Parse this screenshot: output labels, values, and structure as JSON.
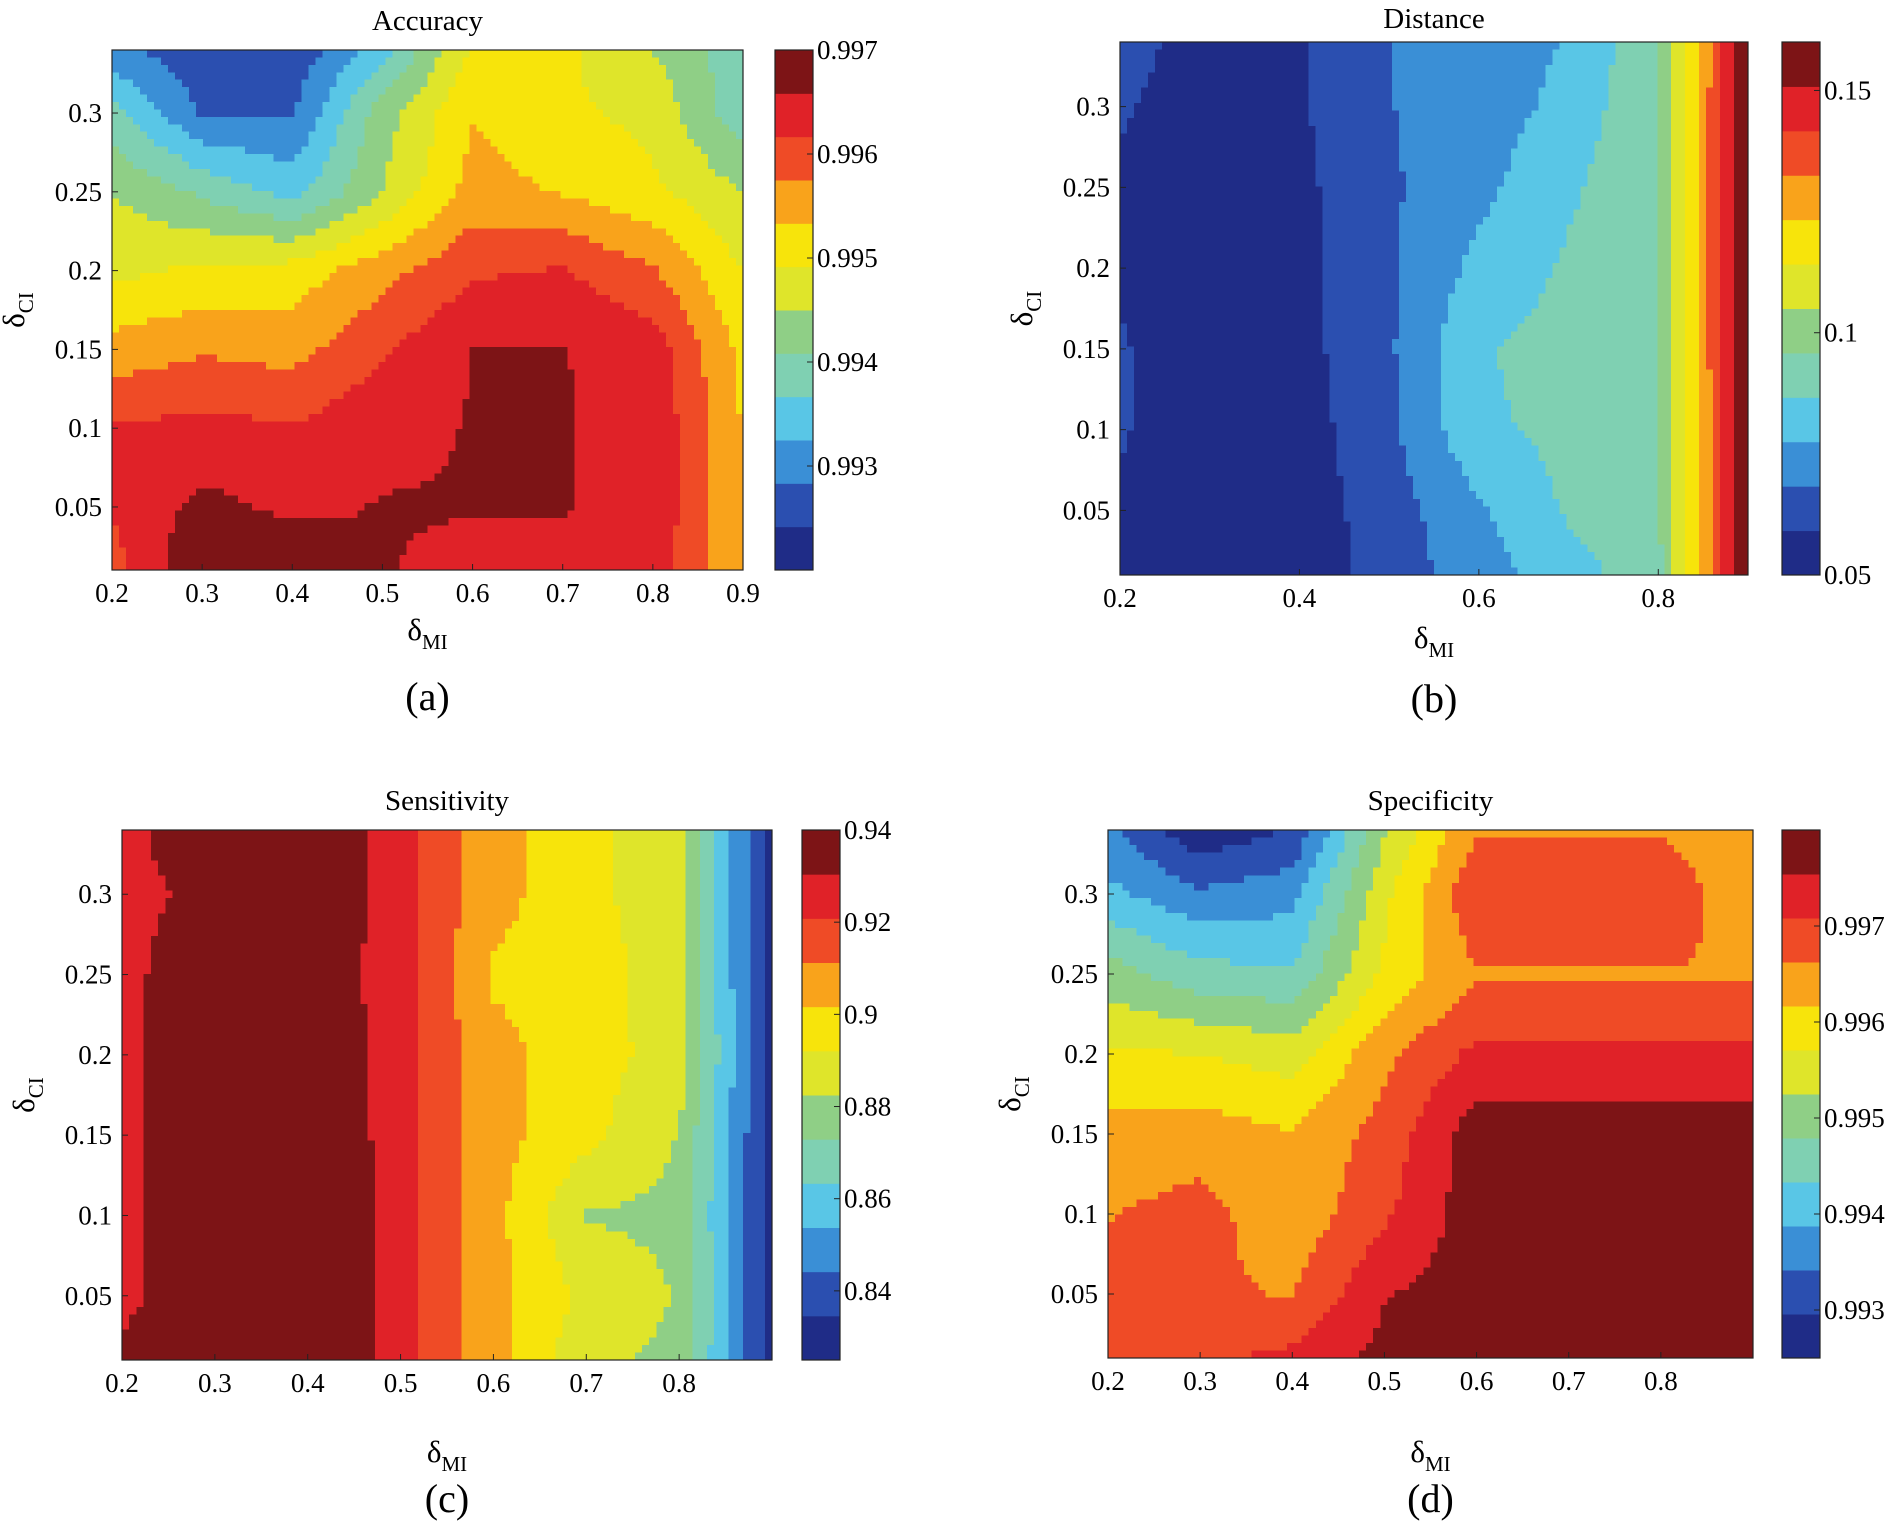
{
  "figure": {
    "colorscale": [
      "#1f2c87",
      "#2b4fb0",
      "#3a8fd6",
      "#59c6e6",
      "#7fd0b2",
      "#8fcf86",
      "#dfe52a",
      "#f7e40b",
      "#f9a31b",
      "#ef4b26",
      "#e02228",
      "#7d1416"
    ]
  },
  "chart_data": [
    {
      "type": "contour",
      "panel_label": "(a)",
      "title": "Accuracy",
      "xlabel": {
        "base": "δ",
        "sub": "MI"
      },
      "ylabel": {
        "base": "δ",
        "sub": "CI"
      },
      "xlim": [
        0.2,
        0.9
      ],
      "ylim": [
        0.01,
        0.34
      ],
      "x_ticks": [
        "0.2",
        "0.3",
        "0.4",
        "0.5",
        "0.6",
        "0.7",
        "0.8",
        "0.9"
      ],
      "y_ticks": [
        "0.05",
        "0.1",
        "0.15",
        "0.2",
        "0.25",
        "0.3"
      ],
      "colorbar": {
        "min": 0.992,
        "max": 0.997,
        "ticks": [
          "0.993",
          "0.994",
          "0.995",
          "0.996",
          "0.997"
        ]
      },
      "x": [
        0.2,
        0.3,
        0.4,
        0.5,
        0.6,
        0.7,
        0.8,
        0.9
      ],
      "y": [
        0.01,
        0.05,
        0.1,
        0.15,
        0.2,
        0.25,
        0.3,
        0.34
      ],
      "z": [
        [
          0.996,
          0.997,
          0.9969,
          0.9966,
          0.9965,
          0.9965,
          0.9964,
          0.9953
        ],
        [
          0.9962,
          0.9967,
          0.9965,
          0.9966,
          0.9966,
          0.9966,
          0.9965,
          0.9953
        ],
        [
          0.9962,
          0.9963,
          0.9962,
          0.9965,
          0.9966,
          0.9966,
          0.9965,
          0.9953
        ],
        [
          0.9955,
          0.9957,
          0.9956,
          0.9961,
          0.9966,
          0.9966,
          0.9964,
          0.9952
        ],
        [
          0.9948,
          0.995,
          0.9951,
          0.9956,
          0.9961,
          0.9962,
          0.9958,
          0.9949
        ],
        [
          0.9945,
          0.994,
          0.9935,
          0.9945,
          0.9955,
          0.9953,
          0.995,
          0.9945
        ],
        [
          0.9938,
          0.9928,
          0.9928,
          0.9943,
          0.9953,
          0.995,
          0.9948,
          0.9938
        ],
        [
          0.993,
          0.9925,
          0.9925,
          0.9935,
          0.995,
          0.995,
          0.9945,
          0.9938
        ]
      ]
    },
    {
      "type": "contour",
      "panel_label": "(b)",
      "title": "Distance",
      "xlabel": {
        "base": "δ",
        "sub": "MI"
      },
      "ylabel": {
        "base": "δ",
        "sub": "CI"
      },
      "xlim": [
        0.2,
        0.9
      ],
      "ylim": [
        0.01,
        0.34
      ],
      "x_ticks": [
        "0.2",
        "0.4",
        "0.6",
        "0.8"
      ],
      "y_ticks": [
        "0.05",
        "0.1",
        "0.15",
        "0.2",
        "0.25",
        "0.3"
      ],
      "colorbar": {
        "min": 0.05,
        "max": 0.16,
        "ticks": [
          "0.05",
          "0.1",
          "0.15"
        ]
      },
      "x": [
        0.2,
        0.3,
        0.4,
        0.5,
        0.6,
        0.7,
        0.8,
        0.9
      ],
      "y": [
        0.01,
        0.05,
        0.1,
        0.15,
        0.2,
        0.25,
        0.3,
        0.34
      ],
      "z": [
        [
          0.057,
          0.052,
          0.054,
          0.063,
          0.074,
          0.082,
          0.093,
          0.16
        ],
        [
          0.058,
          0.052,
          0.054,
          0.064,
          0.076,
          0.088,
          0.095,
          0.16
        ],
        [
          0.06,
          0.053,
          0.055,
          0.066,
          0.085,
          0.089,
          0.095,
          0.16
        ],
        [
          0.06,
          0.054,
          0.056,
          0.067,
          0.086,
          0.09,
          0.096,
          0.16
        ],
        [
          0.058,
          0.053,
          0.056,
          0.067,
          0.08,
          0.088,
          0.096,
          0.16
        ],
        [
          0.058,
          0.053,
          0.057,
          0.067,
          0.075,
          0.085,
          0.096,
          0.16
        ],
        [
          0.06,
          0.055,
          0.058,
          0.068,
          0.073,
          0.08,
          0.096,
          0.16
        ],
        [
          0.062,
          0.056,
          0.058,
          0.068,
          0.073,
          0.078,
          0.095,
          0.16
        ]
      ]
    },
    {
      "type": "contour",
      "panel_label": "(c)",
      "title": "Sensitivity",
      "xlabel": {
        "base": "δ",
        "sub": "MI"
      },
      "ylabel": {
        "base": "δ",
        "sub": "CI"
      },
      "xlim": [
        0.2,
        0.9
      ],
      "ylim": [
        0.01,
        0.34
      ],
      "x_ticks": [
        "0.2",
        "0.3",
        "0.4",
        "0.5",
        "0.6",
        "0.7",
        "0.8"
      ],
      "y_ticks": [
        "0.05",
        "0.1",
        "0.15",
        "0.2",
        "0.25",
        "0.3"
      ],
      "colorbar": {
        "min": 0.825,
        "max": 0.94,
        "ticks": [
          "0.84",
          "0.86",
          "0.88",
          "0.9",
          "0.92",
          "0.94"
        ]
      },
      "x": [
        0.2,
        0.3,
        0.4,
        0.5,
        0.6,
        0.7,
        0.8,
        0.9
      ],
      "y": [
        0.01,
        0.05,
        0.1,
        0.15,
        0.2,
        0.25,
        0.3,
        0.34
      ],
      "z": [
        [
          0.935,
          0.945,
          0.945,
          0.925,
          0.905,
          0.885,
          0.88,
          0.83
        ],
        [
          0.925,
          0.945,
          0.945,
          0.925,
          0.905,
          0.89,
          0.882,
          0.83
        ],
        [
          0.925,
          0.945,
          0.945,
          0.925,
          0.905,
          0.882,
          0.88,
          0.83
        ],
        [
          0.925,
          0.945,
          0.942,
          0.925,
          0.905,
          0.895,
          0.882,
          0.83
        ],
        [
          0.925,
          0.945,
          0.94,
          0.925,
          0.905,
          0.896,
          0.888,
          0.83
        ],
        [
          0.925,
          0.945,
          0.938,
          0.925,
          0.9,
          0.898,
          0.885,
          0.83
        ],
        [
          0.925,
          0.935,
          0.94,
          0.925,
          0.905,
          0.895,
          0.885,
          0.83
        ],
        [
          0.925,
          0.945,
          0.94,
          0.925,
          0.905,
          0.895,
          0.885,
          0.83
        ]
      ]
    },
    {
      "type": "contour",
      "panel_label": "(d)",
      "title": "Specificity",
      "xlabel": {
        "base": "δ",
        "sub": "MI"
      },
      "ylabel": {
        "base": "δ",
        "sub": "CI"
      },
      "xlim": [
        0.2,
        0.9
      ],
      "ylim": [
        0.01,
        0.34
      ],
      "x_ticks": [
        "0.2",
        "0.3",
        "0.4",
        "0.5",
        "0.6",
        "0.7",
        "0.8"
      ],
      "y_ticks": [
        "0.05",
        "0.1",
        "0.15",
        "0.2",
        "0.25",
        "0.3"
      ],
      "colorbar": {
        "min": 0.9925,
        "max": 0.998,
        "ticks": [
          "0.993",
          "0.994",
          "0.995",
          "0.996",
          "0.997"
        ]
      },
      "x": [
        0.2,
        0.3,
        0.4,
        0.5,
        0.6,
        0.7,
        0.8,
        0.9
      ],
      "y": [
        0.01,
        0.05,
        0.1,
        0.15,
        0.2,
        0.25,
        0.3,
        0.34
      ],
      "z": [
        [
          0.997,
          0.997,
          0.9972,
          0.9977,
          0.9979,
          0.9979,
          0.9979,
          0.9979
        ],
        [
          0.9968,
          0.9967,
          0.9966,
          0.9975,
          0.9978,
          0.9978,
          0.9978,
          0.9978
        ],
        [
          0.9966,
          0.9968,
          0.9963,
          0.997,
          0.9978,
          0.9978,
          0.9978,
          0.9978
        ],
        [
          0.9963,
          0.9964,
          0.9962,
          0.9968,
          0.9978,
          0.9978,
          0.9978,
          0.9978
        ],
        [
          0.9958,
          0.9957,
          0.9955,
          0.9965,
          0.9972,
          0.9972,
          0.9972,
          0.9972
        ],
        [
          0.995,
          0.9945,
          0.9944,
          0.9958,
          0.9966,
          0.9966,
          0.9966,
          0.9966
        ],
        [
          0.994,
          0.9935,
          0.9937,
          0.9956,
          0.997,
          0.997,
          0.997,
          0.9962
        ],
        [
          0.9935,
          0.9926,
          0.993,
          0.9952,
          0.9966,
          0.9966,
          0.9966,
          0.9962
        ]
      ]
    }
  ]
}
